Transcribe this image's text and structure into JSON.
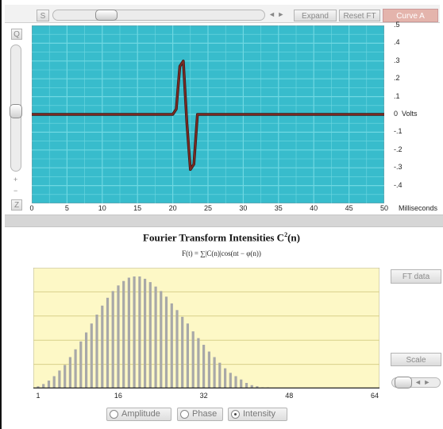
{
  "toolbar": {
    "small_box_label": "S",
    "step_arrows": "◄ ►",
    "expand_label": "Expand",
    "reset_ft_label": "Reset FT",
    "curve_menu_label": "Curve A"
  },
  "left_panel": {
    "top_box_label": "Q",
    "plus_label": "+",
    "minus_label": "−",
    "bottom_box_label": "Z"
  },
  "waveform_plot": {
    "background_color": "#38bccc",
    "grid_color": "#6fd8e2",
    "trace_color": "#7a2a22",
    "y_axis_label": "Volts",
    "x_axis_label": "Milliseconds",
    "y_ticks": [
      ".5",
      ".4",
      ".3",
      ".2",
      ".1",
      "0",
      "-.1",
      "-.2",
      "-.3",
      "-.4"
    ],
    "x_ticks": [
      "0",
      "5",
      "10",
      "15",
      "20",
      "25",
      "30",
      "35",
      "40",
      "45",
      "50"
    ]
  },
  "fourier_panel": {
    "title_main": "Fourier Transform Intensities C",
    "title_sup": "2",
    "title_suffix": "(n)",
    "formula": "F(t) = ∑|C(n)|cos(nt − φ(n))",
    "background_color": "#fdf8c6",
    "bar_color": "#a8a8a8",
    "x_ticks": [
      "1",
      "16",
      "32",
      "48",
      "64"
    ],
    "ft_data_label": "FT data",
    "scale_label": "Scale",
    "scale_arrows": "◄ ►",
    "options": [
      {
        "label": "Amplitude",
        "selected": false
      },
      {
        "label": "Phase",
        "selected": false
      },
      {
        "label": "Intensity",
        "selected": true
      }
    ]
  },
  "chart_data": [
    {
      "type": "line",
      "title": "",
      "xlabel": "Milliseconds",
      "ylabel": "Volts",
      "xlim": [
        0,
        50
      ],
      "ylim": [
        -0.5,
        0.5
      ],
      "grid": true,
      "series": [
        {
          "x": [
            0,
            20,
            20.5,
            21,
            21.5,
            22,
            22.5,
            23,
            23.5,
            50
          ],
          "y": [
            0,
            0,
            0.03,
            0.27,
            0.3,
            -0.05,
            -0.31,
            -0.28,
            0,
            0
          ]
        }
      ]
    },
    {
      "type": "bar",
      "title": "Fourier Transform Intensities C2(n)",
      "xlabel": "",
      "ylabel": "",
      "xlim": [
        1,
        64
      ],
      "ylim": [
        0,
        1.05
      ],
      "grid": true,
      "x": [
        1,
        2,
        3,
        4,
        5,
        6,
        7,
        8,
        9,
        10,
        11,
        12,
        13,
        14,
        15,
        16,
        17,
        18,
        19,
        20,
        21,
        22,
        23,
        24,
        25,
        26,
        27,
        28,
        29,
        30,
        31,
        32,
        33,
        34,
        35,
        36,
        37,
        38,
        39,
        40,
        41,
        42,
        43,
        44,
        45,
        46,
        47,
        48,
        49,
        50,
        51,
        52,
        53,
        54,
        55,
        56,
        57,
        58,
        59,
        60,
        61,
        62,
        63,
        64
      ],
      "values": [
        0.02,
        0.04,
        0.07,
        0.11,
        0.16,
        0.21,
        0.28,
        0.35,
        0.42,
        0.5,
        0.58,
        0.66,
        0.74,
        0.81,
        0.87,
        0.92,
        0.96,
        0.99,
        1.0,
        1.0,
        0.98,
        0.95,
        0.91,
        0.87,
        0.82,
        0.76,
        0.7,
        0.64,
        0.58,
        0.51,
        0.45,
        0.39,
        0.33,
        0.28,
        0.23,
        0.18,
        0.14,
        0.11,
        0.08,
        0.05,
        0.03,
        0.02,
        0.01,
        0.01,
        0,
        0,
        0,
        0,
        0,
        0,
        0,
        0,
        0,
        0,
        0,
        0,
        0,
        0,
        0,
        0,
        0,
        0,
        0,
        0
      ]
    }
  ]
}
